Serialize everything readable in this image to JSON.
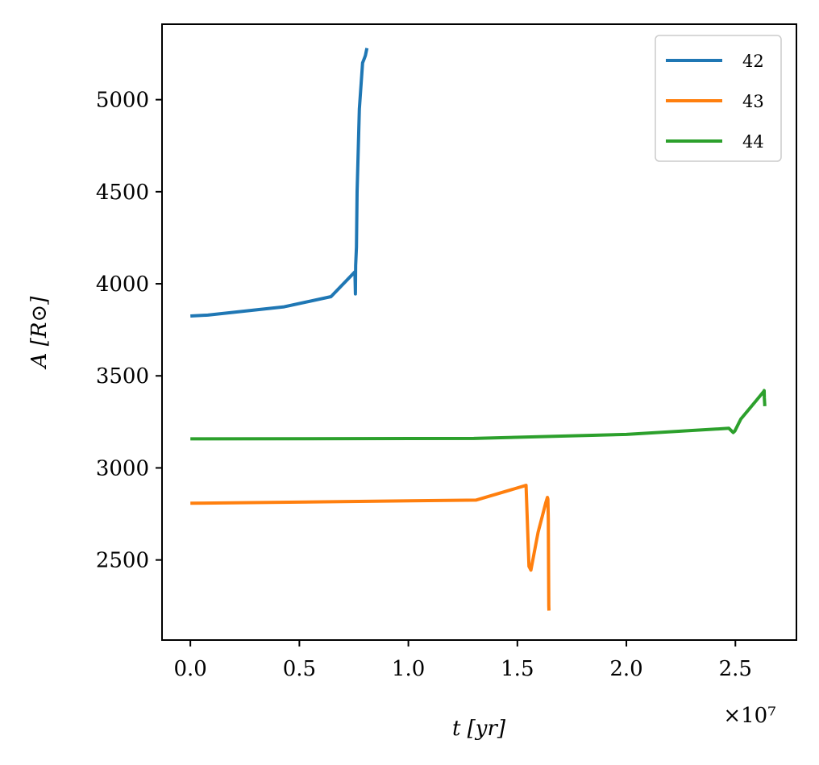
{
  "chart_data": {
    "type": "line",
    "title": "",
    "xlabel": "t [yr]",
    "ylabel": "A [R⊙]",
    "x_offset_label": "×10⁷",
    "xlim": [
      -0.13,
      2.78
    ],
    "ylim": [
      2065,
      5410
    ],
    "xticks": [
      0.0,
      0.5,
      1.0,
      1.5,
      2.0,
      2.5
    ],
    "xtick_labels": [
      "0.0",
      "0.5",
      "1.0",
      "1.5",
      "2.0",
      "2.5"
    ],
    "yticks": [
      2500,
      3000,
      3500,
      4000,
      4500,
      5000
    ],
    "ytick_labels": [
      "2500",
      "3000",
      "3500",
      "4000",
      "4500",
      "5000"
    ],
    "grid": false,
    "legend_position": "top-right",
    "series": [
      {
        "name": "42",
        "color": "#1f77b4",
        "x": [
          0.0,
          0.08,
          0.43,
          0.645,
          0.755,
          0.757,
          0.758,
          0.762,
          0.765,
          0.775,
          0.79,
          0.8,
          0.803,
          0.81
        ],
        "y": [
          3825,
          3830,
          3875,
          3930,
          4065,
          3945,
          4100,
          4200,
          4500,
          4950,
          5200,
          5230,
          5240,
          5280
        ]
      },
      {
        "name": "43",
        "color": "#ff7f0e",
        "x": [
          0.0,
          1.31,
          1.54,
          1.553,
          1.562,
          1.595,
          1.615,
          1.63,
          1.638,
          1.64,
          1.642,
          1.643,
          1.644,
          1.645
        ],
        "y": [
          2808,
          2825,
          2905,
          2465,
          2445,
          2650,
          2740,
          2810,
          2840,
          2830,
          2720,
          2460,
          2250,
          2225
        ]
      },
      {
        "name": "44",
        "color": "#2ca02c",
        "x": [
          0.0,
          1.3,
          2.0,
          2.47,
          2.49,
          2.497,
          2.525,
          2.6,
          2.63,
          2.632,
          2.633,
          2.635
        ],
        "y": [
          3158,
          3160,
          3182,
          3215,
          3192,
          3200,
          3265,
          3372,
          3415,
          3420,
          3380,
          3335
        ]
      }
    ]
  }
}
